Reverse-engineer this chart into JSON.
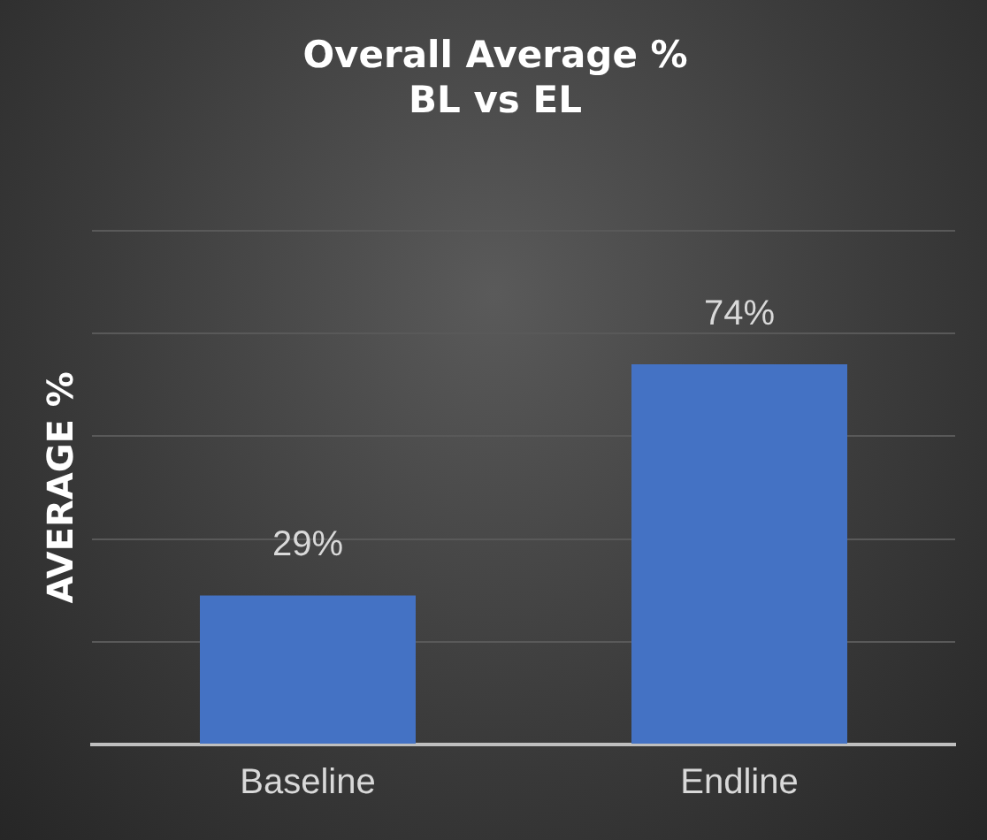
{
  "chart_data": {
    "type": "bar",
    "title": "Overall Average %\nBL vs EL",
    "ylabel": "AVERAGE %",
    "categories": [
      "Baseline",
      "Endline"
    ],
    "values": [
      29,
      74
    ],
    "color": "#4472c4",
    "value_labels": [
      "29%",
      "74%"
    ],
    "ylim": [
      0,
      100
    ],
    "yticks": [
      {
        "value": 0,
        "label": null
      },
      {
        "value": 20,
        "label": null
      },
      {
        "value": 40,
        "label": null
      },
      {
        "value": 60,
        "label": null
      },
      {
        "value": 80,
        "label": null
      },
      {
        "value": 100,
        "label": null
      }
    ],
    "tick_labels": "x",
    "grid": "y",
    "legend": false
  }
}
